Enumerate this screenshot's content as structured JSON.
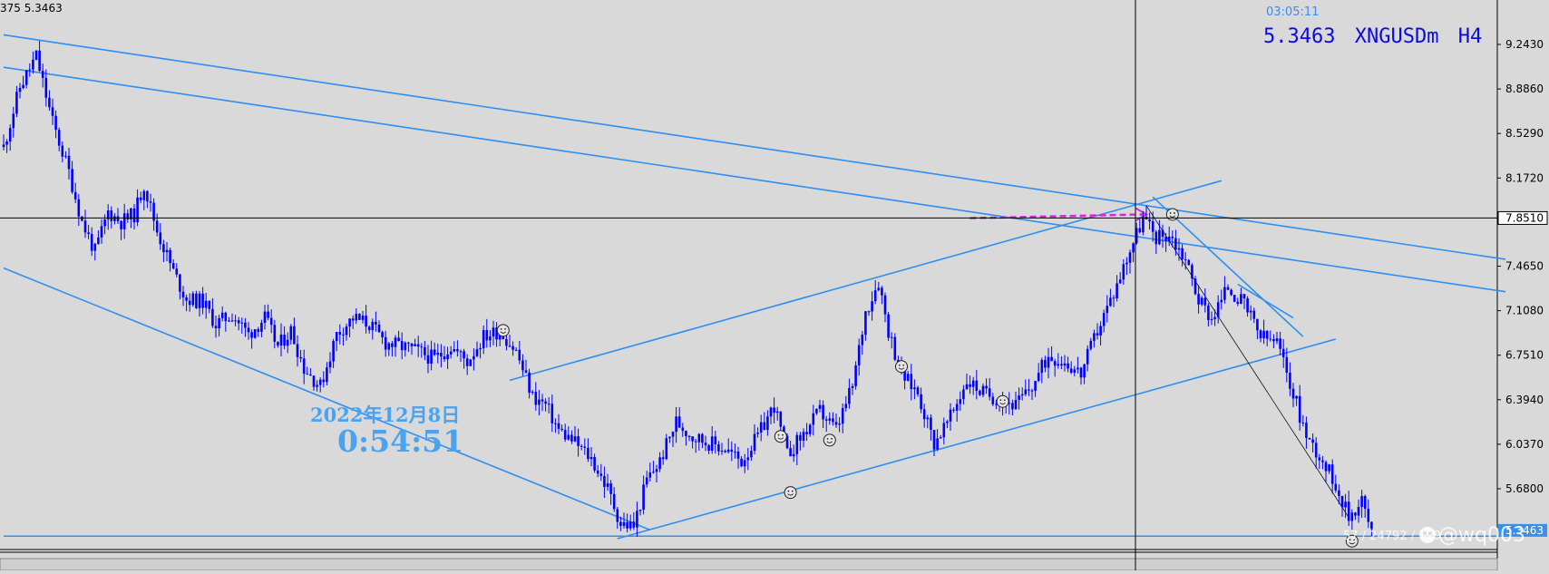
{
  "header": {
    "ohlc_readout": "375 5.3463",
    "time_left": "03:05:11",
    "price": "5.3463",
    "symbol": "XNGUSDm",
    "timeframe": "H4"
  },
  "annotation": {
    "date": "2022年12月8日",
    "clock": "0:54:51"
  },
  "watermark": {
    "counter": "57 / 24792 / 719",
    "handle": "@wq003"
  },
  "colors": {
    "background": "#d9d9d9",
    "candles": "#0000ff",
    "trendlines": "#2e8ff0",
    "arrow": "#e020e0",
    "crosshair": "#000000",
    "current_price_label_bg": "#3b8fe8"
  },
  "chart_data": {
    "type": "candlestick",
    "y_axis": {
      "position": "right",
      "range": [
        5.1,
        9.3
      ],
      "tick_labels": [
        "9.2430",
        "8.8860",
        "8.5290",
        "8.1720",
        "7.8510",
        "7.4650",
        "7.1080",
        "6.7510",
        "6.3940",
        "6.0370",
        "5.6800"
      ],
      "tick_values": [
        9.243,
        8.886,
        8.529,
        8.172,
        7.851,
        7.465,
        7.108,
        6.751,
        6.394,
        6.037,
        5.68
      ]
    },
    "crosshair_price": "7.8510",
    "current_price": 5.3463,
    "close_path": [
      [
        0,
        8.42
      ],
      [
        5,
        8.9
      ],
      [
        10,
        9.15
      ],
      [
        15,
        8.62
      ],
      [
        20,
        8.22
      ],
      [
        24,
        7.82
      ],
      [
        28,
        7.58
      ],
      [
        32,
        7.9
      ],
      [
        36,
        7.82
      ],
      [
        40,
        7.88
      ],
      [
        43,
        8.12
      ],
      [
        47,
        7.75
      ],
      [
        52,
        7.42
      ],
      [
        56,
        7.2
      ],
      [
        61,
        7.18
      ],
      [
        65,
        7.0
      ],
      [
        70,
        7.08
      ],
      [
        75,
        6.92
      ],
      [
        80,
        7.05
      ],
      [
        84,
        6.82
      ],
      [
        88,
        6.95
      ],
      [
        92,
        6.65
      ],
      [
        97,
        6.5
      ],
      [
        102,
        6.92
      ],
      [
        107,
        7.05
      ],
      [
        112,
        7.0
      ],
      [
        117,
        6.85
      ],
      [
        122,
        6.82
      ],
      [
        127,
        6.78
      ],
      [
        132,
        6.72
      ],
      [
        137,
        6.82
      ],
      [
        142,
        6.7
      ],
      [
        147,
        6.9
      ],
      [
        152,
        6.95
      ],
      [
        157,
        6.78
      ],
      [
        162,
        6.42
      ],
      [
        166,
        6.35
      ],
      [
        170,
        6.15
      ],
      [
        175,
        6.05
      ],
      [
        180,
        5.92
      ],
      [
        185,
        5.68
      ],
      [
        189,
        5.4
      ],
      [
        193,
        5.38
      ],
      [
        197,
        5.75
      ],
      [
        201,
        5.9
      ],
      [
        206,
        6.22
      ],
      [
        211,
        6.1
      ],
      [
        216,
        6.05
      ],
      [
        221,
        6.0
      ],
      [
        226,
        5.9
      ],
      [
        231,
        6.1
      ],
      [
        236,
        6.35
      ],
      [
        240,
        5.95
      ],
      [
        245,
        6.12
      ],
      [
        250,
        6.3
      ],
      [
        255,
        6.15
      ],
      [
        260,
        6.5
      ],
      [
        264,
        7.1
      ],
      [
        268,
        7.35
      ],
      [
        271,
        6.95
      ],
      [
        275,
        6.6
      ],
      [
        280,
        6.45
      ],
      [
        285,
        6.05
      ],
      [
        290,
        6.25
      ],
      [
        295,
        6.55
      ],
      [
        300,
        6.45
      ],
      [
        305,
        6.4
      ],
      [
        310,
        6.35
      ],
      [
        315,
        6.5
      ],
      [
        320,
        6.75
      ],
      [
        325,
        6.7
      ],
      [
        330,
        6.6
      ],
      [
        335,
        6.95
      ],
      [
        340,
        7.25
      ],
      [
        345,
        7.6
      ],
      [
        349,
        7.85
      ],
      [
        353,
        7.7
      ],
      [
        357,
        7.72
      ],
      [
        362,
        7.52
      ],
      [
        366,
        7.2
      ],
      [
        370,
        7.05
      ],
      [
        375,
        7.3
      ],
      [
        380,
        7.15
      ],
      [
        385,
        6.9
      ],
      [
        390,
        6.85
      ],
      [
        395,
        6.45
      ],
      [
        399,
        6.1
      ],
      [
        403,
        5.95
      ],
      [
        408,
        5.72
      ],
      [
        412,
        5.45
      ],
      [
        416,
        5.6
      ],
      [
        419,
        5.32
      ]
    ],
    "trendlines": [
      {
        "name": "upper-channel-top",
        "from": [
          0,
          9.32
        ],
        "to": [
          460,
          7.52
        ]
      },
      {
        "name": "upper-channel-bottom",
        "from": [
          0,
          9.06
        ],
        "to": [
          460,
          7.26
        ]
      },
      {
        "name": "lower-wedge-support",
        "from": [
          0,
          7.45
        ],
        "to": [
          198,
          5.35
        ]
      },
      {
        "name": "mid-support",
        "from": [
          188,
          5.28
        ],
        "to": [
          408,
          6.88
        ]
      },
      {
        "name": "mid-resistance",
        "from": [
          155,
          6.55
        ],
        "to": [
          373,
          8.15
        ]
      },
      {
        "name": "descent-line",
        "from": [
          350,
          7.95
        ],
        "to": [
          412,
          5.45
        ]
      },
      {
        "name": "steep-down-1",
        "from": [
          352,
          8.02
        ],
        "to": [
          398,
          6.9
        ]
      },
      {
        "name": "steep-down-2",
        "from": [
          378,
          7.32
        ],
        "to": [
          395,
          7.05
        ]
      },
      {
        "name": "bottom-horizontal",
        "from": [
          0,
          5.3
        ],
        "to": [
          460,
          5.3
        ]
      }
    ],
    "arrow": {
      "from": [
        296,
        7.85
      ],
      "to": [
        350,
        7.88
      ]
    },
    "markers": [
      [
        153,
        6.95
      ],
      [
        238,
        6.1
      ],
      [
        241,
        5.65
      ],
      [
        253,
        6.07
      ],
      [
        275,
        6.66
      ],
      [
        306,
        6.38
      ],
      [
        358,
        7.88
      ],
      [
        413,
        5.26
      ]
    ],
    "legend": "none",
    "grid": false
  }
}
